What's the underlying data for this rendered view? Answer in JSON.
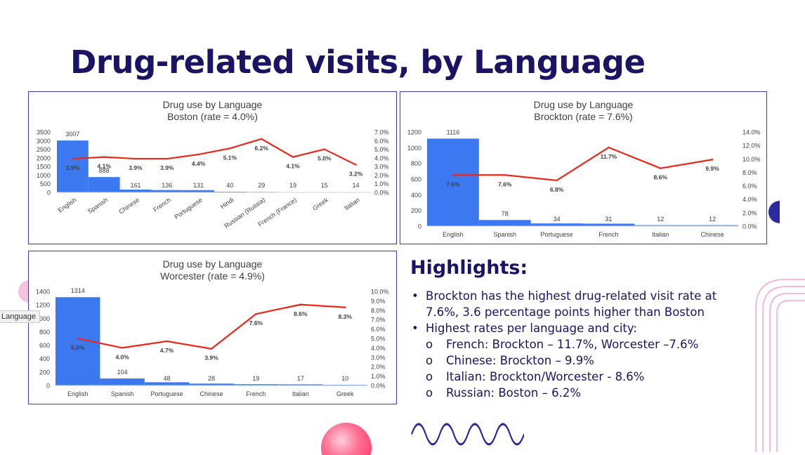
{
  "slide": {
    "title": "Drug-related visits, by Language"
  },
  "tooltip": "Language",
  "highlights": {
    "title": "Highlights:",
    "items": [
      {
        "text": "Brockton has the highest drug-related visit rate at 7.6%, 3.6 percentage points higher than Boston",
        "sub": []
      },
      {
        "text": "Highest rates per language and city:",
        "sub": [
          "French: Brockton – 11.7%, Worcester –7.6%",
          "Chinese: Brockton – 9.9%",
          "Italian: Brockton/Worcester - 8.6%",
          "Russian: Boston – 6.2%"
        ]
      }
    ],
    "bullet": "•",
    "sub_bullet": "o"
  },
  "colors": {
    "bars": "#3c78f0",
    "line": "#e8291c",
    "title": "#1b1464",
    "border": "#3b3bb5"
  },
  "chart_data": [
    {
      "type": "bar",
      "title": "Drug use by Language",
      "subtitle": "Boston (rate = 4.0%)",
      "categories": [
        "English",
        "Spanish",
        "Chinese",
        "French",
        "Portuguese",
        "Hindi",
        "Russian (Russia)",
        "French (France)",
        "Greek",
        "Italian"
      ],
      "series": [
        {
          "type": "bar",
          "values": [
            3007,
            888,
            161,
            136,
            131,
            40,
            29,
            19,
            15,
            14
          ]
        },
        {
          "type": "line",
          "values": [
            3.9,
            4.1,
            3.9,
            3.9,
            4.4,
            5.1,
            6.2,
            4.1,
            5.0,
            3.2
          ]
        }
      ],
      "bar_labels": [
        "3007",
        "888",
        "161",
        "136",
        "131",
        "40",
        "29",
        "19",
        "15",
        "14"
      ],
      "line_labels": [
        "3.9%",
        "4.1%",
        "3.9%",
        "3.9%",
        "4.4%",
        "5.1%",
        "6.2%",
        "4.1%",
        "5.0%",
        "3.2%"
      ],
      "ylim": [
        0,
        3500
      ],
      "y_ticks": [
        "0",
        "500",
        "1000",
        "1500",
        "2000",
        "2500",
        "3000",
        "3500"
      ],
      "y2lim": [
        0,
        7
      ],
      "y2_ticks": [
        "0.0%",
        "1.0%",
        "2.0%",
        "3.0%",
        "4.0%",
        "5.0%",
        "6.0%",
        "7.0%"
      ],
      "x_rotated": true,
      "grid": false
    },
    {
      "type": "bar",
      "title": "Drug use by Language",
      "subtitle": "Brockton (rate = 7.6%)",
      "categories": [
        "English",
        "Spanish",
        "Portuguese",
        "French",
        "Italian",
        "Chinese"
      ],
      "series": [
        {
          "type": "bar",
          "values": [
            1116,
            78,
            34,
            31,
            12,
            12
          ]
        },
        {
          "type": "line",
          "values": [
            7.6,
            7.6,
            6.8,
            11.7,
            8.6,
            9.9
          ]
        }
      ],
      "bar_labels": [
        "1116",
        "78",
        "34",
        "31",
        "12",
        "12"
      ],
      "line_labels": [
        "7.6%",
        "7.6%",
        "6.8%",
        "11.7%",
        "8.6%",
        "9.9%"
      ],
      "ylim": [
        0,
        1200
      ],
      "y_ticks": [
        "0",
        "200",
        "400",
        "600",
        "800",
        "1000",
        "1200"
      ],
      "y2lim": [
        0,
        14
      ],
      "y2_ticks": [
        "0.0%",
        "2.0%",
        "4.0%",
        "6.0%",
        "8.0%",
        "10.0%",
        "12.0%",
        "14.0%"
      ],
      "x_rotated": false,
      "grid": false
    },
    {
      "type": "bar",
      "title": "Drug use by Language",
      "subtitle": "Worcester (rate = 4.9%)",
      "categories": [
        "English",
        "Spanish",
        "Portuguese",
        "Chinese",
        "French",
        "Italian",
        "Greek"
      ],
      "series": [
        {
          "type": "bar",
          "values": [
            1314,
            104,
            48,
            28,
            19,
            17,
            10
          ]
        },
        {
          "type": "line",
          "values": [
            5.0,
            4.0,
            4.7,
            3.9,
            7.6,
            8.6,
            8.3
          ]
        }
      ],
      "bar_labels": [
        "1314",
        "104",
        "48",
        "28",
        "19",
        "17",
        "10"
      ],
      "line_labels": [
        "5.0%",
        "4.0%",
        "4.7%",
        "3.9%",
        "7.6%",
        "8.6%",
        "8.3%"
      ],
      "ylim": [
        0,
        1400
      ],
      "y_ticks": [
        "0",
        "200",
        "400",
        "600",
        "800",
        "1000",
        "1200",
        "1400"
      ],
      "y2lim": [
        0,
        10
      ],
      "y2_ticks": [
        "0.0%",
        "1.0%",
        "2.0%",
        "3.0%",
        "4.0%",
        "5.0%",
        "6.0%",
        "7.0%",
        "8.0%",
        "9.0%",
        "10.0%"
      ],
      "x_rotated": false,
      "grid": false
    }
  ]
}
